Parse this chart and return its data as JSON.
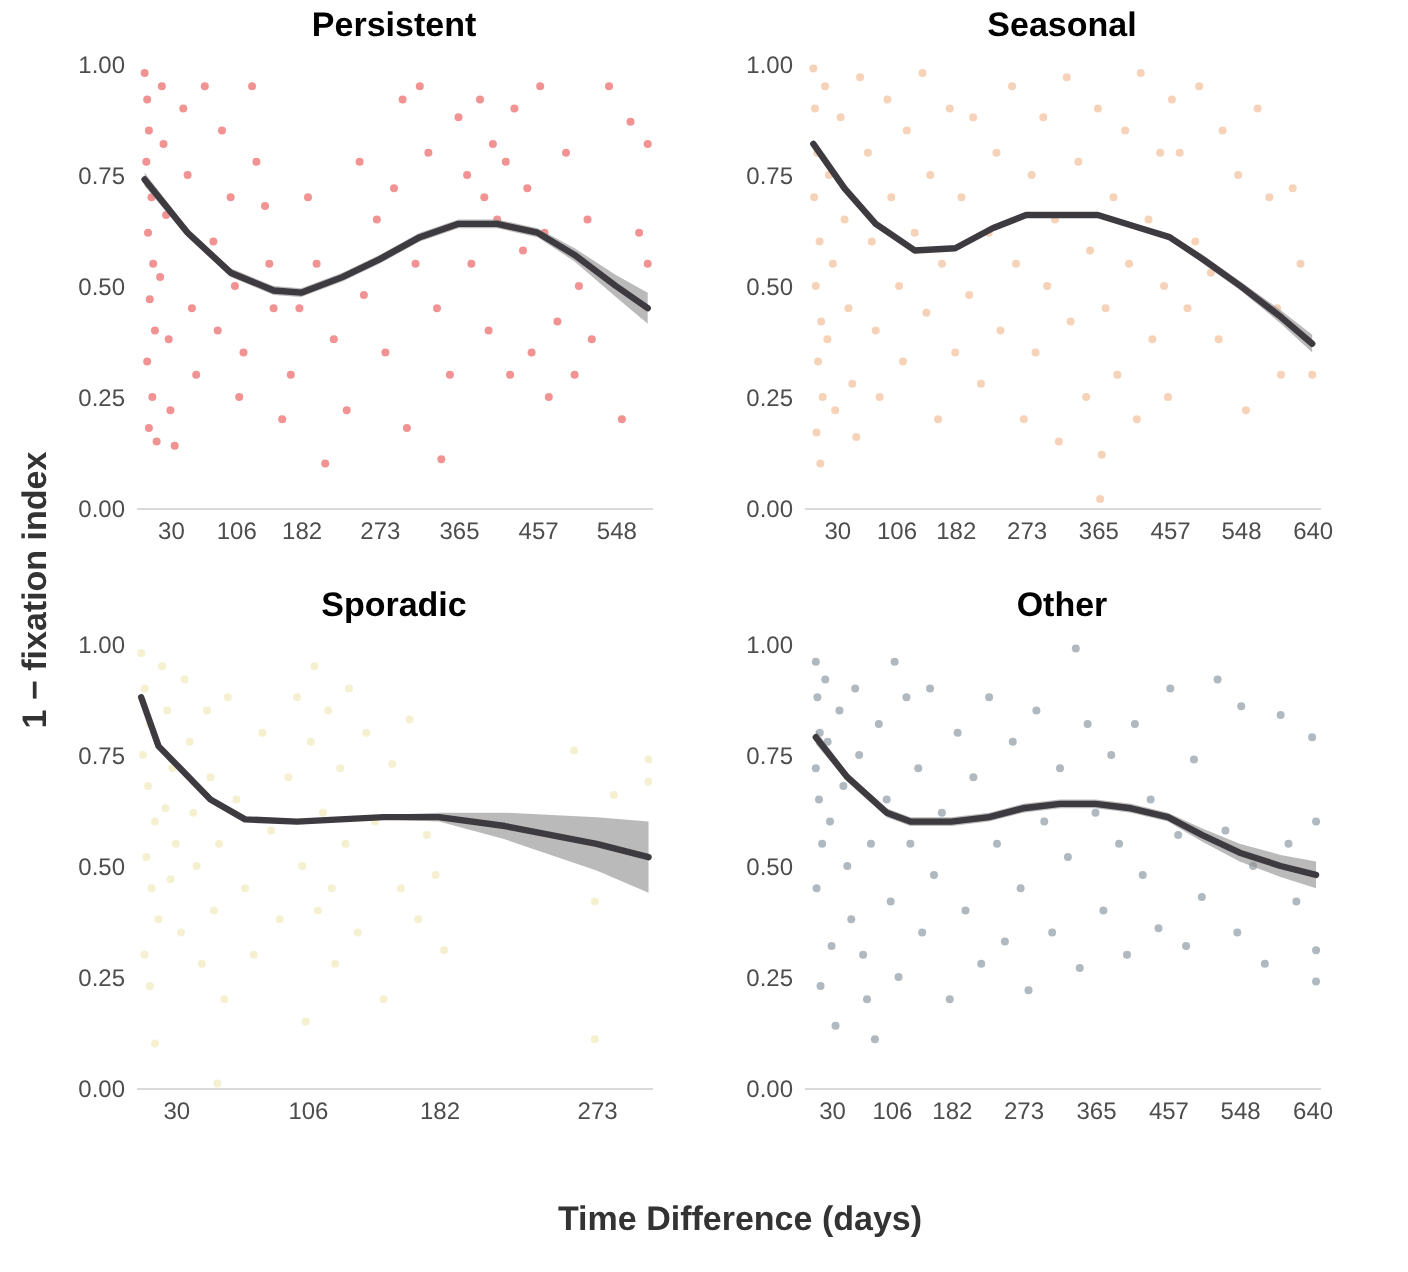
{
  "chart_data": [
    {
      "type": "scatter",
      "title": "Persistent",
      "ylabel": "1 − fixation index",
      "xlim": [
        -10,
        590
      ],
      "ylim": [
        0,
        1
      ],
      "xticks": [
        30,
        106,
        182,
        273,
        365,
        457,
        548
      ],
      "yticks": [
        {
          "value": 0,
          "label": "0.00"
        },
        {
          "value": 0.25,
          "label": "0.25"
        },
        {
          "value": 0.5,
          "label": "0.50"
        },
        {
          "value": 0.75,
          "label": "0.75"
        },
        {
          "value": 1,
          "label": "1.00"
        }
      ],
      "series": [
        {
          "type": "scatter",
          "marker": "circle",
          "color": "#f08080",
          "x": [
            0,
            3,
            5,
            2,
            8,
            4,
            10,
            6,
            12,
            3,
            9,
            5,
            14,
            20,
            22,
            25,
            18,
            28,
            30,
            35,
            45,
            50,
            55,
            60,
            70,
            80,
            85,
            90,
            100,
            105,
            110,
            115,
            125,
            130,
            140,
            145,
            150,
            160,
            170,
            180,
            190,
            200,
            210,
            220,
            235,
            250,
            255,
            270,
            280,
            290,
            300,
            305,
            315,
            320,
            330,
            340,
            345,
            355,
            365,
            375,
            380,
            390,
            395,
            400,
            405,
            410,
            420,
            425,
            430,
            440,
            445,
            450,
            460,
            465,
            470,
            480,
            490,
            500,
            505,
            515,
            520,
            540,
            555,
            565,
            575,
            585,
            585
          ],
          "values": [
            0.98,
            0.92,
            0.85,
            0.78,
            0.7,
            0.62,
            0.55,
            0.47,
            0.4,
            0.33,
            0.25,
            0.18,
            0.15,
            0.95,
            0.82,
            0.66,
            0.52,
            0.38,
            0.22,
            0.14,
            0.9,
            0.75,
            0.45,
            0.3,
            0.95,
            0.6,
            0.4,
            0.85,
            0.7,
            0.5,
            0.25,
            0.35,
            0.95,
            0.78,
            0.68,
            0.55,
            0.45,
            0.2,
            0.3,
            0.45,
            0.7,
            0.55,
            0.1,
            0.38,
            0.22,
            0.78,
            0.48,
            0.65,
            0.35,
            0.72,
            0.92,
            0.18,
            0.55,
            0.95,
            0.8,
            0.45,
            0.11,
            0.3,
            0.88,
            0.75,
            0.55,
            0.92,
            0.7,
            0.4,
            0.82,
            0.65,
            0.78,
            0.3,
            0.9,
            0.58,
            0.72,
            0.35,
            0.95,
            0.62,
            0.25,
            0.42,
            0.8,
            0.3,
            0.5,
            0.65,
            0.38,
            0.95,
            0.2,
            0.87,
            0.62,
            0.82,
            0.55
          ]
        },
        {
          "type": "line",
          "color": "#3d3a40",
          "line_style": "solid",
          "x": [
            0,
            50,
            100,
            150,
            182,
            230,
            273,
            320,
            365,
            410,
            457,
            500,
            548,
            585
          ],
          "values": [
            0.74,
            0.62,
            0.53,
            0.49,
            0.485,
            0.52,
            0.56,
            0.61,
            0.64,
            0.64,
            0.62,
            0.57,
            0.5,
            0.45
          ],
          "lower": [
            0.725,
            0.61,
            0.52,
            0.48,
            0.475,
            0.51,
            0.55,
            0.6,
            0.63,
            0.63,
            0.61,
            0.555,
            0.475,
            0.415
          ],
          "upper": [
            0.755,
            0.63,
            0.54,
            0.5,
            0.495,
            0.53,
            0.57,
            0.62,
            0.65,
            0.65,
            0.63,
            0.585,
            0.525,
            0.485
          ]
        }
      ]
    },
    {
      "type": "scatter",
      "title": "Seasonal",
      "xlim": [
        -12,
        650
      ],
      "ylim": [
        0,
        1
      ],
      "xticks": [
        30,
        106,
        182,
        273,
        365,
        457,
        548,
        640
      ],
      "yticks": [
        {
          "value": 0,
          "label": "0.00"
        },
        {
          "value": 0.25,
          "label": "0.25"
        },
        {
          "value": 0.5,
          "label": "0.50"
        },
        {
          "value": 0.75,
          "label": "0.75"
        },
        {
          "value": 1,
          "label": "1.00"
        }
      ],
      "series": [
        {
          "type": "scatter",
          "marker": "circle",
          "color": "#f5cbac",
          "x": [
            0,
            2,
            5,
            1,
            8,
            3,
            10,
            6,
            12,
            4,
            9,
            15,
            20,
            25,
            18,
            28,
            35,
            40,
            45,
            50,
            55,
            60,
            70,
            75,
            80,
            85,
            95,
            100,
            110,
            115,
            120,
            130,
            140,
            145,
            150,
            160,
            165,
            175,
            182,
            190,
            200,
            205,
            215,
            225,
            235,
            240,
            255,
            260,
            270,
            280,
            285,
            295,
            300,
            310,
            315,
            325,
            330,
            340,
            350,
            355,
            365,
            370,
            375,
            385,
            390,
            400,
            405,
            415,
            420,
            430,
            435,
            445,
            450,
            455,
            460,
            470,
            480,
            490,
            495,
            510,
            520,
            525,
            545,
            555,
            570,
            585,
            595,
            600,
            615,
            625,
            640,
            368
          ],
          "values": [
            0.99,
            0.9,
            0.8,
            0.7,
            0.6,
            0.5,
            0.42,
            0.33,
            0.25,
            0.17,
            0.1,
            0.95,
            0.75,
            0.55,
            0.38,
            0.22,
            0.88,
            0.65,
            0.45,
            0.28,
            0.16,
            0.97,
            0.8,
            0.6,
            0.4,
            0.25,
            0.92,
            0.7,
            0.5,
            0.33,
            0.85,
            0.62,
            0.98,
            0.44,
            0.75,
            0.2,
            0.55,
            0.9,
            0.35,
            0.7,
            0.48,
            0.88,
            0.28,
            0.62,
            0.8,
            0.4,
            0.95,
            0.55,
            0.2,
            0.75,
            0.35,
            0.88,
            0.5,
            0.65,
            0.15,
            0.97,
            0.42,
            0.78,
            0.25,
            0.58,
            0.9,
            0.12,
            0.45,
            0.7,
            0.3,
            0.85,
            0.55,
            0.2,
            0.98,
            0.65,
            0.38,
            0.8,
            0.5,
            0.25,
            0.92,
            0.8,
            0.45,
            0.6,
            0.95,
            0.53,
            0.38,
            0.85,
            0.75,
            0.22,
            0.9,
            0.7,
            0.45,
            0.3,
            0.72,
            0.55,
            0.3,
            0.02
          ]
        },
        {
          "type": "line",
          "color": "#3d3a40",
          "line_style": "solid",
          "x": [
            0,
            40,
            80,
            130,
            182,
            230,
            273,
            365,
            420,
            457,
            500,
            548,
            600,
            640
          ],
          "values": [
            0.82,
            0.72,
            0.64,
            0.58,
            0.585,
            0.63,
            0.66,
            0.66,
            0.63,
            0.61,
            0.56,
            0.5,
            0.43,
            0.37
          ],
          "lower": [
            0.81,
            0.715,
            0.635,
            0.575,
            0.58,
            0.625,
            0.655,
            0.655,
            0.625,
            0.605,
            0.55,
            0.49,
            0.415,
            0.35
          ],
          "upper": [
            0.83,
            0.725,
            0.645,
            0.585,
            0.59,
            0.635,
            0.665,
            0.665,
            0.635,
            0.615,
            0.57,
            0.51,
            0.445,
            0.39
          ]
        }
      ]
    },
    {
      "type": "scatter",
      "title": "Sporadic",
      "xlabel": "Time Difference (days)",
      "xlim": [
        7,
        305
      ],
      "ylim": [
        0,
        1
      ],
      "xticks": [
        30,
        106,
        182,
        273
      ],
      "yticks": [
        {
          "value": 0,
          "label": "0.00"
        },
        {
          "value": 0.25,
          "label": "0.25"
        },
        {
          "value": 0.5,
          "label": "0.50"
        },
        {
          "value": 0.75,
          "label": "0.75"
        },
        {
          "value": 1,
          "label": "1.00"
        }
      ],
      "series": [
        {
          "type": "scatter",
          "marker": "circle",
          "color": "#f3edc8",
          "x": [
            10,
            12,
            15,
            11,
            14,
            18,
            13,
            16,
            20,
            12,
            15,
            18,
            22,
            25,
            28,
            24,
            30,
            27,
            33,
            35,
            38,
            40,
            42,
            45,
            48,
            50,
            52,
            55,
            58,
            60,
            65,
            70,
            75,
            80,
            85,
            90,
            95,
            100,
            103,
            105,
            108,
            110,
            112,
            115,
            118,
            120,
            122,
            125,
            128,
            130,
            135,
            140,
            145,
            150,
            155,
            160,
            165,
            170,
            175,
            180,
            185,
            54,
            260,
            272,
            272,
            283,
            303,
            303
          ],
          "values": [
            0.98,
            0.9,
            0.82,
            0.75,
            0.68,
            0.6,
            0.52,
            0.45,
            0.38,
            0.3,
            0.23,
            0.1,
            0.95,
            0.85,
            0.72,
            0.63,
            0.55,
            0.47,
            0.35,
            0.92,
            0.78,
            0.62,
            0.5,
            0.28,
            0.85,
            0.7,
            0.4,
            0.55,
            0.2,
            0.88,
            0.65,
            0.45,
            0.3,
            0.8,
            0.58,
            0.38,
            0.7,
            0.88,
            0.5,
            0.15,
            0.78,
            0.95,
            0.4,
            0.62,
            0.85,
            0.45,
            0.28,
            0.72,
            0.55,
            0.9,
            0.35,
            0.8,
            0.6,
            0.2,
            0.73,
            0.45,
            0.83,
            0.38,
            0.57,
            0.48,
            0.31,
            0.01,
            0.76,
            0.11,
            0.42,
            0.66,
            0.74,
            0.69
          ]
        },
        {
          "type": "line",
          "color": "#3d3a40",
          "line_style": "solid",
          "x": [
            10,
            20,
            30,
            50,
            70,
            100,
            150,
            182,
            220,
            273,
            303
          ],
          "values": [
            0.88,
            0.77,
            0.73,
            0.65,
            0.605,
            0.6,
            0.61,
            0.61,
            0.59,
            0.55,
            0.52
          ],
          "lower": [
            0.87,
            0.765,
            0.725,
            0.645,
            0.6,
            0.595,
            0.605,
            0.6,
            0.56,
            0.49,
            0.44
          ],
          "upper": [
            0.89,
            0.775,
            0.735,
            0.655,
            0.61,
            0.605,
            0.615,
            0.62,
            0.62,
            0.61,
            0.6
          ]
        }
      ]
    },
    {
      "type": "scatter",
      "title": "Other",
      "xlim": [
        -5,
        650
      ],
      "ylim": [
        0,
        1
      ],
      "xticks": [
        30,
        106,
        182,
        273,
        365,
        457,
        548,
        640
      ],
      "yticks": [
        {
          "value": 0,
          "label": "0.00"
        },
        {
          "value": 0.25,
          "label": "0.25"
        },
        {
          "value": 0.5,
          "label": "0.50"
        },
        {
          "value": 0.75,
          "label": "0.75"
        },
        {
          "value": 1,
          "label": "1.00"
        }
      ],
      "series": [
        {
          "type": "scatter",
          "marker": "circle",
          "color": "#a2adb5",
          "x": [
            10,
            12,
            15,
            10,
            14,
            18,
            11,
            16,
            22,
            25,
            28,
            30,
            35,
            40,
            45,
            50,
            55,
            60,
            65,
            70,
            75,
            80,
            85,
            90,
            100,
            105,
            110,
            115,
            125,
            130,
            140,
            145,
            155,
            160,
            170,
            180,
            190,
            200,
            210,
            220,
            230,
            240,
            250,
            260,
            270,
            280,
            290,
            300,
            310,
            320,
            330,
            340,
            345,
            355,
            365,
            375,
            385,
            395,
            405,
            415,
            425,
            435,
            445,
            460,
            470,
            480,
            490,
            500,
            520,
            530,
            545,
            550,
            565,
            580,
            600,
            610,
            620,
            640,
            645,
            645,
            645
          ],
          "values": [
            0.96,
            0.88,
            0.8,
            0.72,
            0.65,
            0.55,
            0.45,
            0.23,
            0.92,
            0.78,
            0.6,
            0.32,
            0.14,
            0.85,
            0.68,
            0.5,
            0.38,
            0.9,
            0.75,
            0.3,
            0.2,
            0.55,
            0.11,
            0.82,
            0.65,
            0.42,
            0.96,
            0.25,
            0.88,
            0.55,
            0.72,
            0.35,
            0.9,
            0.48,
            0.62,
            0.2,
            0.8,
            0.4,
            0.7,
            0.28,
            0.88,
            0.55,
            0.33,
            0.78,
            0.45,
            0.22,
            0.85,
            0.6,
            0.35,
            0.72,
            0.52,
            0.99,
            0.27,
            0.82,
            0.62,
            0.4,
            0.75,
            0.55,
            0.3,
            0.82,
            0.48,
            0.65,
            0.36,
            0.9,
            0.57,
            0.32,
            0.74,
            0.43,
            0.92,
            0.58,
            0.35,
            0.86,
            0.5,
            0.28,
            0.84,
            0.55,
            0.42,
            0.79,
            0.6,
            0.31,
            0.24
          ]
        },
        {
          "type": "line",
          "color": "#3d3a40",
          "line_style": "solid",
          "x": [
            10,
            50,
            100,
            130,
            182,
            230,
            273,
            320,
            365,
            410,
            457,
            500,
            548,
            600,
            645
          ],
          "values": [
            0.79,
            0.7,
            0.62,
            0.6,
            0.6,
            0.61,
            0.63,
            0.64,
            0.64,
            0.63,
            0.61,
            0.57,
            0.53,
            0.5,
            0.48
          ],
          "lower": [
            0.775,
            0.69,
            0.61,
            0.59,
            0.59,
            0.6,
            0.62,
            0.63,
            0.63,
            0.62,
            0.6,
            0.555,
            0.51,
            0.475,
            0.45
          ],
          "upper": [
            0.805,
            0.71,
            0.63,
            0.61,
            0.61,
            0.62,
            0.64,
            0.65,
            0.65,
            0.64,
            0.62,
            0.585,
            0.55,
            0.525,
            0.51
          ]
        }
      ]
    }
  ]
}
